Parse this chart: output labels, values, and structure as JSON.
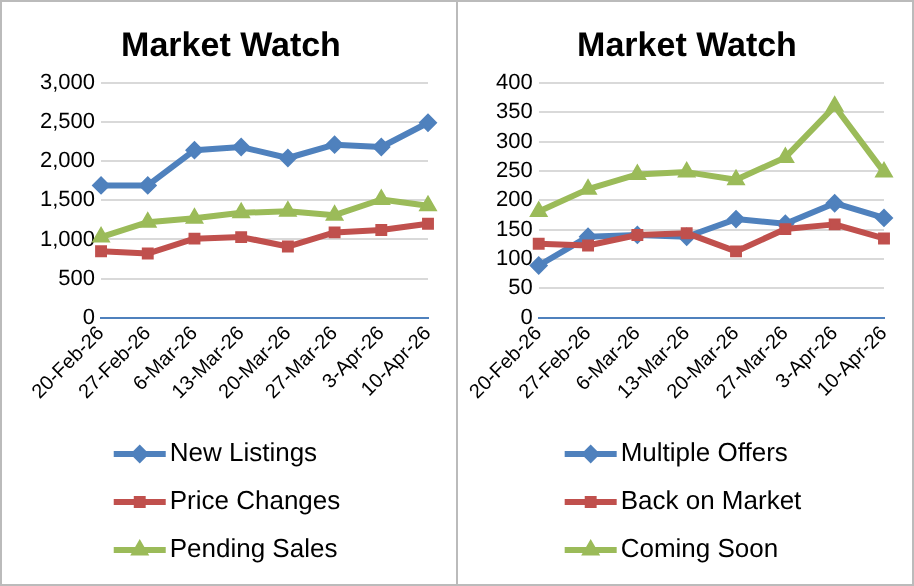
{
  "chart_data": [
    {
      "type": "line",
      "title": "Market Watch",
      "categories": [
        "20-Feb-26",
        "27-Feb-26",
        "6-Mar-26",
        "13-Mar-26",
        "20-Mar-26",
        "27-Mar-26",
        "3-Apr-26",
        "10-Apr-26"
      ],
      "series": [
        {
          "name": "New Listings",
          "color": "#4f81bd",
          "marker": "diamond",
          "values": [
            1690,
            1690,
            2140,
            2180,
            2040,
            2210,
            2180,
            2490
          ]
        },
        {
          "name": "Price Changes",
          "color": "#c0504d",
          "marker": "square",
          "values": [
            850,
            820,
            1010,
            1030,
            910,
            1090,
            1120,
            1200
          ]
        },
        {
          "name": "Pending Sales",
          "color": "#9bbb59",
          "marker": "triangle",
          "values": [
            1030,
            1220,
            1270,
            1340,
            1360,
            1310,
            1510,
            1430
          ]
        }
      ],
      "ylim": [
        0,
        3000
      ],
      "yticks": [
        0,
        500,
        {
          "value": 1000,
          "label": "1,000"
        },
        {
          "value": 1500,
          "label": "1,500"
        },
        {
          "value": 2000,
          "label": "2,000"
        },
        {
          "value": 2500,
          "label": "2,500"
        },
        {
          "value": 3000,
          "label": "3,000"
        }
      ],
      "grid": "y",
      "legend": "bottom"
    },
    {
      "type": "line",
      "title": "Market Watch",
      "categories": [
        "20-Feb-26",
        "27-Feb-26",
        "6-Mar-26",
        "13-Mar-26",
        "20-Mar-26",
        "27-Mar-26",
        "3-Apr-26",
        "10-Apr-26"
      ],
      "series": [
        {
          "name": "Multiple Offers",
          "color": "#4f81bd",
          "marker": "diamond",
          "values": [
            89,
            138,
            141,
            138,
            168,
            160,
            195,
            170
          ]
        },
        {
          "name": "Back on Market",
          "color": "#c0504d",
          "marker": "square",
          "values": [
            126,
            123,
            141,
            144,
            113,
            151,
            159,
            135
          ]
        },
        {
          "name": "Coming Soon",
          "color": "#9bbb59",
          "marker": "triangle",
          "values": [
            181,
            219,
            244,
            248,
            235,
            273,
            360,
            248
          ]
        }
      ],
      "ylim": [
        0,
        400
      ],
      "yticks": [
        0,
        50,
        100,
        150,
        200,
        250,
        300,
        350,
        400
      ],
      "grid": "y",
      "legend": "bottom"
    }
  ]
}
